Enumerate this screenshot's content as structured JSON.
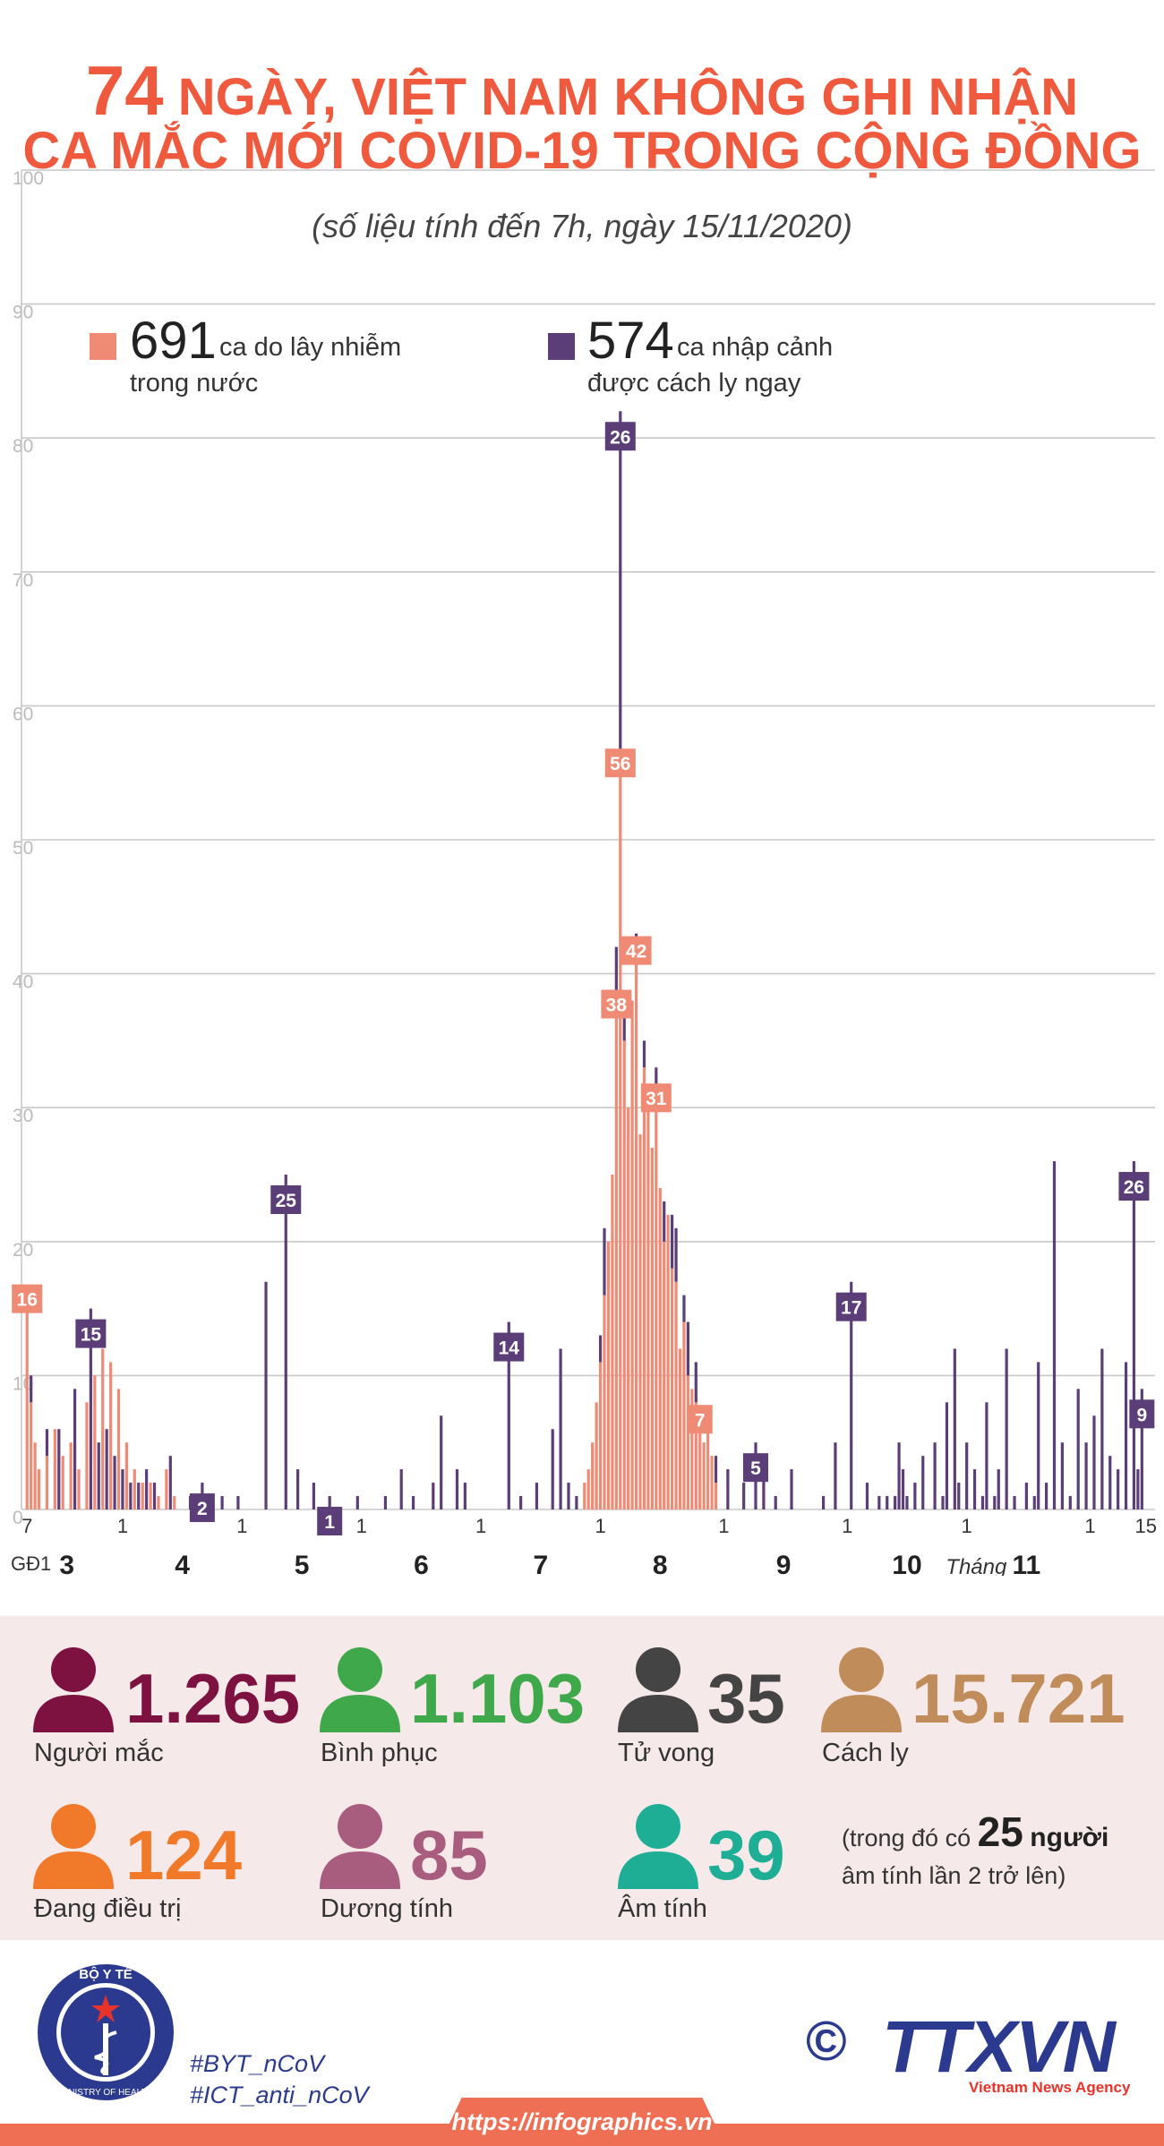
{
  "header": {
    "title_number": "74",
    "title_line1_rest": "NGÀY, VIỆT NAM KHÔNG GHI NHẬN",
    "title_line2": "CA MẮC MỚI COVID-19 TRONG CỘNG ĐỒNG",
    "subtitle": "(số liệu tính đến 7h, ngày 15/11/2020)"
  },
  "legend": {
    "domestic_number": "691",
    "domestic_text_1": "ca do lây nhiễm",
    "domestic_text_2": "trong nước",
    "imported_number": "574",
    "imported_text_1": "ca nhập cảnh",
    "imported_text_2": "được cách ly ngay"
  },
  "colors": {
    "title": "#ef5a3e",
    "domestic": "#ef8a74",
    "imported": "#5b3e77",
    "grid": "#c8c8c8",
    "stats_bg": "#f6e9ea"
  },
  "chart_data": {
    "type": "bar",
    "stacked": true,
    "ylim": [
      0,
      100
    ],
    "y_ticks": [
      "0",
      "10",
      "20",
      "30",
      "40",
      "50",
      "60",
      "70",
      "80",
      "90",
      "100"
    ],
    "grid": true,
    "x_date_ticks": [
      {
        "day": 0,
        "label": "7"
      },
      {
        "day": 24,
        "label": "1"
      },
      {
        "day": 54,
        "label": "1"
      },
      {
        "day": 84,
        "label": "1"
      },
      {
        "day": 114,
        "label": "1"
      },
      {
        "day": 144,
        "label": "1"
      },
      {
        "day": 175,
        "label": "1"
      },
      {
        "day": 206,
        "label": "1"
      },
      {
        "day": 236,
        "label": "1"
      },
      {
        "day": 267,
        "label": "1"
      },
      {
        "day": 281,
        "label": "15"
      }
    ],
    "month_labels": [
      {
        "day": 10,
        "label": "3"
      },
      {
        "day": 39,
        "label": "4"
      },
      {
        "day": 69,
        "label": "5"
      },
      {
        "day": 99,
        "label": "6"
      },
      {
        "day": 129,
        "label": "7"
      },
      {
        "day": 159,
        "label": "8"
      },
      {
        "day": 190,
        "label": "9"
      },
      {
        "day": 221,
        "label": "10"
      },
      {
        "day": 251,
        "label": "11"
      }
    ],
    "month_axis_left_label": "GĐ1",
    "month_axis_right_label": "Tháng",
    "series": [
      {
        "name": "ca do lây nhiễm trong nước",
        "color": "#ef8a74",
        "points": [
          [
            0,
            16
          ],
          [
            1,
            8
          ],
          [
            2,
            5
          ],
          [
            3,
            3
          ],
          [
            5,
            4
          ],
          [
            7,
            6
          ],
          [
            9,
            4
          ],
          [
            11,
            5
          ],
          [
            13,
            3
          ],
          [
            15,
            8
          ],
          [
            17,
            10
          ],
          [
            19,
            12
          ],
          [
            21,
            11
          ],
          [
            23,
            9
          ],
          [
            25,
            5
          ],
          [
            27,
            3
          ],
          [
            29,
            2
          ],
          [
            31,
            2
          ],
          [
            33,
            1
          ],
          [
            35,
            3
          ],
          [
            37,
            1
          ],
          [
            140,
            2
          ],
          [
            141,
            3
          ],
          [
            142,
            5
          ],
          [
            143,
            8
          ],
          [
            144,
            11
          ],
          [
            145,
            16
          ],
          [
            146,
            20
          ],
          [
            147,
            25
          ],
          [
            148,
            38
          ],
          [
            149,
            56
          ],
          [
            150,
            35
          ],
          [
            151,
            30
          ],
          [
            152,
            38
          ],
          [
            153,
            42
          ],
          [
            154,
            28
          ],
          [
            155,
            33
          ],
          [
            156,
            30
          ],
          [
            157,
            27
          ],
          [
            158,
            31
          ],
          [
            159,
            24
          ],
          [
            160,
            20
          ],
          [
            161,
            22
          ],
          [
            162,
            18
          ],
          [
            163,
            17
          ],
          [
            164,
            12
          ],
          [
            165,
            14
          ],
          [
            166,
            10
          ],
          [
            167,
            9
          ],
          [
            168,
            8
          ],
          [
            169,
            7
          ],
          [
            170,
            5
          ],
          [
            171,
            6
          ],
          [
            172,
            4
          ],
          [
            173,
            2
          ]
        ]
      },
      {
        "name": "ca nhập cảnh được cách ly ngay",
        "color": "#5b3e77",
        "points": [
          [
            1,
            2
          ],
          [
            5,
            2
          ],
          [
            8,
            6
          ],
          [
            12,
            9
          ],
          [
            16,
            15
          ],
          [
            18,
            5
          ],
          [
            20,
            6
          ],
          [
            22,
            4
          ],
          [
            24,
            3
          ],
          [
            26,
            2
          ],
          [
            28,
            2
          ],
          [
            30,
            3
          ],
          [
            32,
            2
          ],
          [
            36,
            4
          ],
          [
            41,
            1
          ],
          [
            44,
            2
          ],
          [
            49,
            1
          ],
          [
            53,
            1
          ],
          [
            60,
            17
          ],
          [
            65,
            25
          ],
          [
            68,
            3
          ],
          [
            72,
            2
          ],
          [
            76,
            1
          ],
          [
            83,
            1
          ],
          [
            90,
            1
          ],
          [
            94,
            3
          ],
          [
            97,
            1
          ],
          [
            102,
            2
          ],
          [
            104,
            7
          ],
          [
            108,
            3
          ],
          [
            110,
            2
          ],
          [
            121,
            14
          ],
          [
            124,
            1
          ],
          [
            128,
            2
          ],
          [
            132,
            6
          ],
          [
            134,
            12
          ],
          [
            136,
            2
          ],
          [
            138,
            1
          ],
          [
            144,
            2
          ],
          [
            145,
            5
          ],
          [
            148,
            4
          ],
          [
            149,
            26
          ],
          [
            150,
            3
          ],
          [
            153,
            1
          ],
          [
            155,
            2
          ],
          [
            158,
            2
          ],
          [
            160,
            3
          ],
          [
            162,
            4
          ],
          [
            163,
            4
          ],
          [
            165,
            2
          ],
          [
            166,
            4
          ],
          [
            168,
            3
          ],
          [
            173,
            2
          ],
          [
            176,
            3
          ],
          [
            180,
            2
          ],
          [
            183,
            5
          ],
          [
            185,
            3
          ],
          [
            188,
            1
          ],
          [
            192,
            3
          ],
          [
            200,
            1
          ],
          [
            203,
            5
          ],
          [
            207,
            17
          ],
          [
            211,
            2
          ],
          [
            214,
            1
          ],
          [
            216,
            1
          ],
          [
            218,
            1
          ],
          [
            219,
            5
          ],
          [
            220,
            3
          ],
          [
            221,
            1
          ],
          [
            223,
            2
          ],
          [
            225,
            4
          ],
          [
            228,
            5
          ],
          [
            230,
            1
          ],
          [
            231,
            8
          ],
          [
            233,
            12
          ],
          [
            234,
            2
          ],
          [
            236,
            5
          ],
          [
            238,
            3
          ],
          [
            240,
            1
          ],
          [
            241,
            8
          ],
          [
            243,
            1
          ],
          [
            244,
            3
          ],
          [
            246,
            12
          ],
          [
            248,
            1
          ],
          [
            251,
            2
          ],
          [
            253,
            1
          ],
          [
            254,
            11
          ],
          [
            256,
            2
          ],
          [
            258,
            26
          ],
          [
            260,
            5
          ],
          [
            262,
            1
          ],
          [
            264,
            9
          ],
          [
            266,
            5
          ],
          [
            268,
            7
          ],
          [
            270,
            12
          ],
          [
            272,
            4
          ],
          [
            274,
            3
          ],
          [
            276,
            11
          ],
          [
            278,
            26
          ],
          [
            279,
            3
          ],
          [
            280,
            9
          ]
        ]
      }
    ],
    "data_labels": [
      {
        "day": 0,
        "text": "16",
        "series": 0
      },
      {
        "day": 16,
        "text": "15",
        "series": 1
      },
      {
        "day": 44,
        "text": "2",
        "series": 1
      },
      {
        "day": 65,
        "text": "25",
        "series": 1
      },
      {
        "day": 76,
        "text": "1",
        "series": 1
      },
      {
        "day": 121,
        "text": "14",
        "series": 1
      },
      {
        "day": 149,
        "text": "26",
        "series": 1
      },
      {
        "day": 149,
        "text": "56",
        "series": 0
      },
      {
        "day": 148,
        "text": "38",
        "series": 0
      },
      {
        "day": 153,
        "text": "42",
        "series": 0
      },
      {
        "day": 158,
        "text": "31",
        "series": 0
      },
      {
        "day": 169,
        "text": "7",
        "series": 0
      },
      {
        "day": 183,
        "text": "5",
        "series": 1
      },
      {
        "day": 207,
        "text": "17",
        "series": 1
      },
      {
        "day": 278,
        "text": "26",
        "series": 1
      },
      {
        "day": 280,
        "text": "9",
        "series": 1
      }
    ]
  },
  "stats": {
    "row1": [
      {
        "value": "1.265",
        "label": "Người mắc",
        "color": "#7d1240"
      },
      {
        "value": "1.103",
        "label": "Bình phục",
        "color": "#3fa84a"
      },
      {
        "value": "35",
        "label": "Tử vong",
        "color": "#444444"
      },
      {
        "value": "15.721",
        "label": "Cách ly",
        "color": "#c08c5a"
      }
    ],
    "row2": [
      {
        "value": "124",
        "label": "Đang điều trị",
        "color": "#f07a2a"
      },
      {
        "value": "85",
        "label": "Dương tính",
        "color": "#a85c7e"
      },
      {
        "value": "39",
        "label": "Âm tính",
        "color": "#1eae96"
      }
    ],
    "note_prefix": "(trong đó có",
    "note_number": "25",
    "note_unit": "người",
    "note_line2": "âm tính lần 2 trở lên)"
  },
  "footer": {
    "logo_top_text": "BỘ Y TẾ",
    "logo_bottom_text": "MINISTRY OF HEALTH",
    "hashtag1": "#BYT_nCoV",
    "hashtag2": "#ICT_anti_nCoV",
    "copyright_symbol": "©",
    "agency_logo": "TTXVN",
    "agency_sub": "Vietnam News Agency",
    "url": "https://infographics.vn"
  }
}
